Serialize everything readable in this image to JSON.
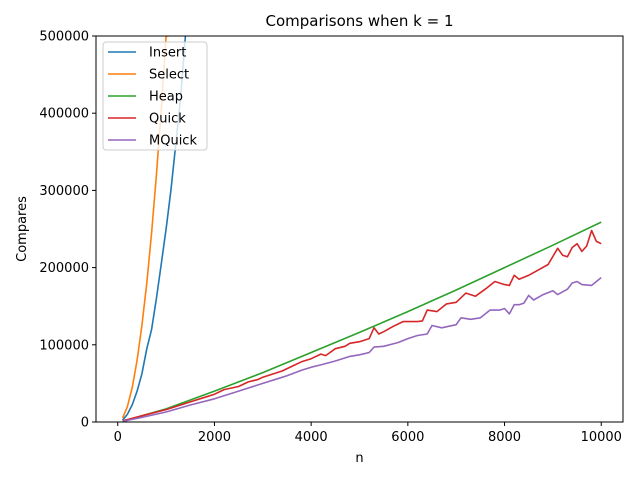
{
  "chart_data": {
    "type": "line",
    "title": "Comparisons when k = 1",
    "xlabel": "n",
    "ylabel": "Compares",
    "xlim": [
      -450,
      10450
    ],
    "ylim": [
      0,
      500000
    ],
    "xticks": [
      0,
      2000,
      4000,
      6000,
      8000,
      10000
    ],
    "yticks": [
      0,
      100000,
      200000,
      300000,
      400000,
      500000
    ],
    "grid": false,
    "legend_position": "top-left",
    "series": [
      {
        "name": "Insert",
        "color": "#1f77b4",
        "x": [
          100,
          200,
          300,
          400,
          500,
          600,
          700,
          800,
          900,
          1000,
          1100,
          1200,
          1300,
          1400
        ],
        "y": [
          2500,
          10000,
          22500,
          40000,
          62500,
          95000,
          120000,
          160000,
          205000,
          250000,
          300000,
          360000,
          420000,
          500000
        ]
      },
      {
        "name": "Select",
        "color": "#ff7f0e",
        "x": [
          100,
          200,
          300,
          400,
          500,
          600,
          700,
          800,
          900,
          1000,
          1050
        ],
        "y": [
          5000,
          20000,
          45000,
          80000,
          125000,
          180000,
          245000,
          320000,
          405000,
          500000,
          500000
        ]
      },
      {
        "name": "Heap",
        "color": "#2ca02c",
        "x": [
          100,
          1000,
          2000,
          3000,
          4000,
          5000,
          6000,
          7000,
          8000,
          9000,
          10000
        ],
        "y": [
          1000,
          17000,
          40000,
          64000,
          90000,
          116000,
          143000,
          171000,
          200000,
          229000,
          259000
        ]
      },
      {
        "name": "Quick",
        "color": "#d62728",
        "x": [
          100,
          500,
          1000,
          1500,
          1800,
          2000,
          2200,
          2500,
          2700,
          2900,
          3000,
          3200,
          3400,
          3600,
          3800,
          4000,
          4200,
          4300,
          4500,
          4700,
          4800,
          5000,
          5200,
          5300,
          5400,
          5500,
          5700,
          5900,
          6000,
          6200,
          6300,
          6400,
          6600,
          6800,
          7000,
          7200,
          7400,
          7600,
          7800,
          8000,
          8100,
          8200,
          8300,
          8500,
          8700,
          8900,
          9100,
          9200,
          9300,
          9400,
          9500,
          9600,
          9700,
          9800,
          9900,
          10000
        ],
        "y": [
          1500,
          8000,
          16000,
          26000,
          32000,
          36000,
          42000,
          46000,
          52000,
          55000,
          58000,
          62000,
          66000,
          72000,
          78000,
          82000,
          88000,
          86000,
          95000,
          98000,
          102000,
          104000,
          108000,
          122000,
          114000,
          117000,
          124000,
          130000,
          130000,
          130000,
          131000,
          145000,
          143000,
          153000,
          155000,
          167000,
          163000,
          172000,
          182000,
          178000,
          177000,
          190000,
          185000,
          190000,
          197000,
          204000,
          225000,
          216000,
          214000,
          226000,
          231000,
          221000,
          228000,
          248000,
          234000,
          231000
        ]
      },
      {
        "name": "MQuick",
        "color": "#9467bd",
        "x": [
          100,
          500,
          1000,
          1500,
          2000,
          2500,
          3000,
          3300,
          3500,
          3800,
          4000,
          4200,
          4500,
          4800,
          5000,
          5200,
          5300,
          5500,
          5800,
          6000,
          6200,
          6400,
          6500,
          6700,
          7000,
          7100,
          7300,
          7500,
          7700,
          7900,
          8000,
          8100,
          8200,
          8300,
          8400,
          8500,
          8600,
          8800,
          9000,
          9100,
          9300,
          9400,
          9500,
          9600,
          9800,
          10000
        ],
        "y": [
          800,
          6000,
          13000,
          22000,
          30000,
          40000,
          50000,
          56000,
          60000,
          67000,
          71000,
          74000,
          79000,
          85000,
          87000,
          90000,
          97000,
          98000,
          103000,
          108000,
          112000,
          114000,
          125000,
          122000,
          126000,
          135000,
          133000,
          135000,
          145000,
          145000,
          147000,
          140000,
          152000,
          152000,
          154000,
          164000,
          158000,
          165000,
          170000,
          165000,
          172000,
          180000,
          182000,
          178000,
          177000,
          187000
        ]
      }
    ]
  }
}
